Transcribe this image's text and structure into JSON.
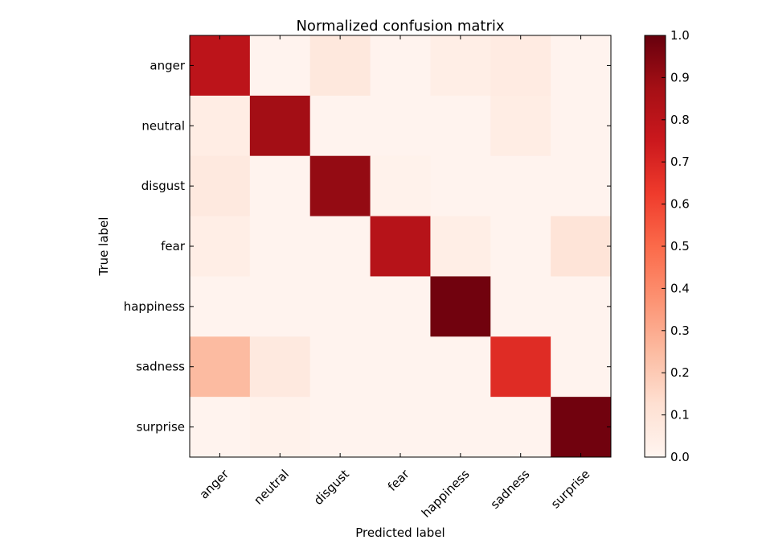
{
  "chart_data": {
    "type": "heatmap",
    "title": "Normalized confusion matrix",
    "xlabel": "Predicted label",
    "ylabel": "True label",
    "x_categories": [
      "anger",
      "neutral",
      "disgust",
      "fear",
      "happiness",
      "sadness",
      "surprise"
    ],
    "y_categories": [
      "anger",
      "neutral",
      "disgust",
      "fear",
      "happiness",
      "sadness",
      "surprise"
    ],
    "values": [
      [
        0.8,
        0.01,
        0.08,
        0.01,
        0.04,
        0.06,
        0.01
      ],
      [
        0.05,
        0.88,
        0.01,
        0.01,
        0.01,
        0.05,
        0.01
      ],
      [
        0.07,
        0.01,
        0.91,
        0.02,
        0.01,
        0.01,
        0.01
      ],
      [
        0.04,
        0.01,
        0.01,
        0.82,
        0.04,
        0.01,
        0.1
      ],
      [
        0.01,
        0.01,
        0.01,
        0.01,
        0.98,
        0.01,
        0.01
      ],
      [
        0.25,
        0.07,
        0.01,
        0.01,
        0.01,
        0.68,
        0.01
      ],
      [
        0.01,
        0.02,
        0.01,
        0.01,
        0.01,
        0.01,
        0.98
      ]
    ],
    "colormap": "Reds",
    "colorbar": {
      "range": [
        0.0,
        1.0
      ],
      "ticks": [
        "0.0",
        "0.1",
        "0.2",
        "0.3",
        "0.4",
        "0.5",
        "0.6",
        "0.7",
        "0.8",
        "0.9",
        "1.0"
      ]
    }
  }
}
